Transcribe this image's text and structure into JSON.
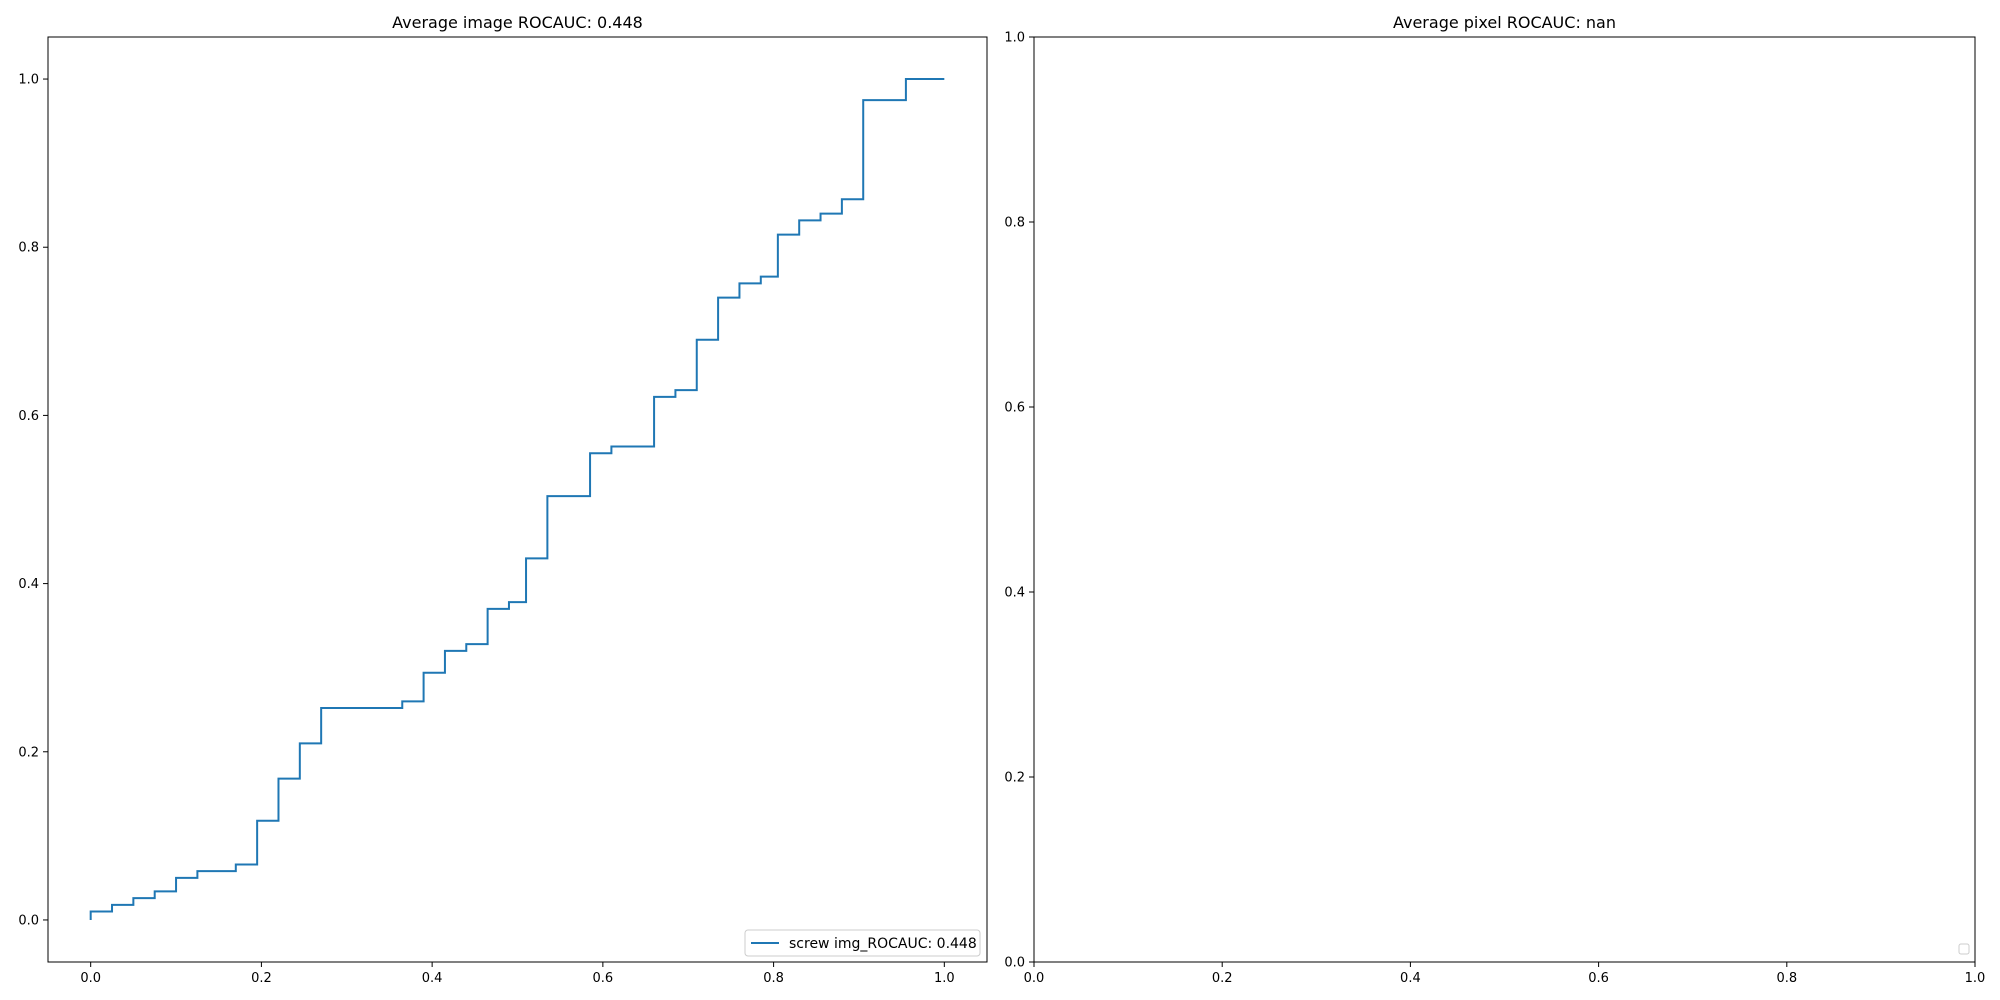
{
  "chart_data": [
    {
      "type": "line",
      "title": "Average image ROCAUC: 0.448",
      "xlabel": "",
      "ylabel": "",
      "xlim": [
        -0.05,
        1.05
      ],
      "ylim": [
        -0.05,
        1.05
      ],
      "xticks": [
        0.0,
        0.2,
        0.4,
        0.6,
        0.8,
        1.0
      ],
      "xtick_labels": [
        "0.0",
        "0.2",
        "0.4",
        "0.6",
        "0.8",
        "1.0"
      ],
      "yticks": [
        0.0,
        0.2,
        0.4,
        0.6,
        0.8,
        1.0
      ],
      "ytick_labels": [
        "0.0",
        "0.2",
        "0.4",
        "0.6",
        "0.8",
        "1.0"
      ],
      "grid": false,
      "legend": "lower-right",
      "series": [
        {
          "name": "screw img_ROCAUC: 0.448",
          "color": "#1f77b4",
          "x": [
            0,
            0,
            0.025,
            0.025,
            0.05,
            0.05,
            0.075,
            0.075,
            0.1,
            0.1,
            0.125,
            0.125,
            0.17,
            0.17,
            0.195,
            0.195,
            0.22,
            0.22,
            0.245,
            0.245,
            0.27,
            0.27,
            0.365,
            0.365,
            0.39,
            0.39,
            0.415,
            0.415,
            0.44,
            0.44,
            0.465,
            0.465,
            0.49,
            0.49,
            0.51,
            0.51,
            0.535,
            0.535,
            0.585,
            0.585,
            0.61,
            0.61,
            0.66,
            0.66,
            0.685,
            0.685,
            0.71,
            0.71,
            0.735,
            0.735,
            0.76,
            0.76,
            0.785,
            0.785,
            0.805,
            0.805,
            0.83,
            0.83,
            0.855,
            0.855,
            0.88,
            0.88,
            0.905,
            0.905,
            0.955,
            0.955,
            1.0
          ],
          "y": [
            0,
            0.01,
            0.01,
            0.018,
            0.018,
            0.026,
            0.026,
            0.034,
            0.034,
            0.05,
            0.05,
            0.058,
            0.058,
            0.066,
            0.066,
            0.118,
            0.118,
            0.168,
            0.168,
            0.21,
            0.21,
            0.252,
            0.252,
            0.26,
            0.26,
            0.294,
            0.294,
            0.32,
            0.32,
            0.328,
            0.328,
            0.37,
            0.37,
            0.378,
            0.378,
            0.43,
            0.43,
            0.504,
            0.504,
            0.555,
            0.555,
            0.563,
            0.563,
            0.622,
            0.622,
            0.63,
            0.63,
            0.69,
            0.69,
            0.74,
            0.74,
            0.757,
            0.757,
            0.765,
            0.765,
            0.815,
            0.815,
            0.832,
            0.832,
            0.84,
            0.84,
            0.857,
            0.857,
            0.975,
            0.975,
            1.0,
            1.0
          ]
        }
      ]
    },
    {
      "type": "line",
      "title": "Average pixel ROCAUC: nan",
      "xlabel": "",
      "ylabel": "",
      "xlim": [
        0.0,
        1.0
      ],
      "ylim": [
        0.0,
        1.0
      ],
      "xticks": [
        0.0,
        0.2,
        0.4,
        0.6,
        0.8,
        1.0
      ],
      "xtick_labels": [
        "0.0",
        "0.2",
        "0.4",
        "0.6",
        "0.8",
        "1.0"
      ],
      "yticks": [
        0.0,
        0.2,
        0.4,
        0.6,
        0.8,
        1.0
      ],
      "ytick_labels": [
        "0.0",
        "0.2",
        "0.4",
        "0.6",
        "0.8",
        "1.0"
      ],
      "grid": false,
      "legend": "lower-right",
      "series": []
    }
  ]
}
